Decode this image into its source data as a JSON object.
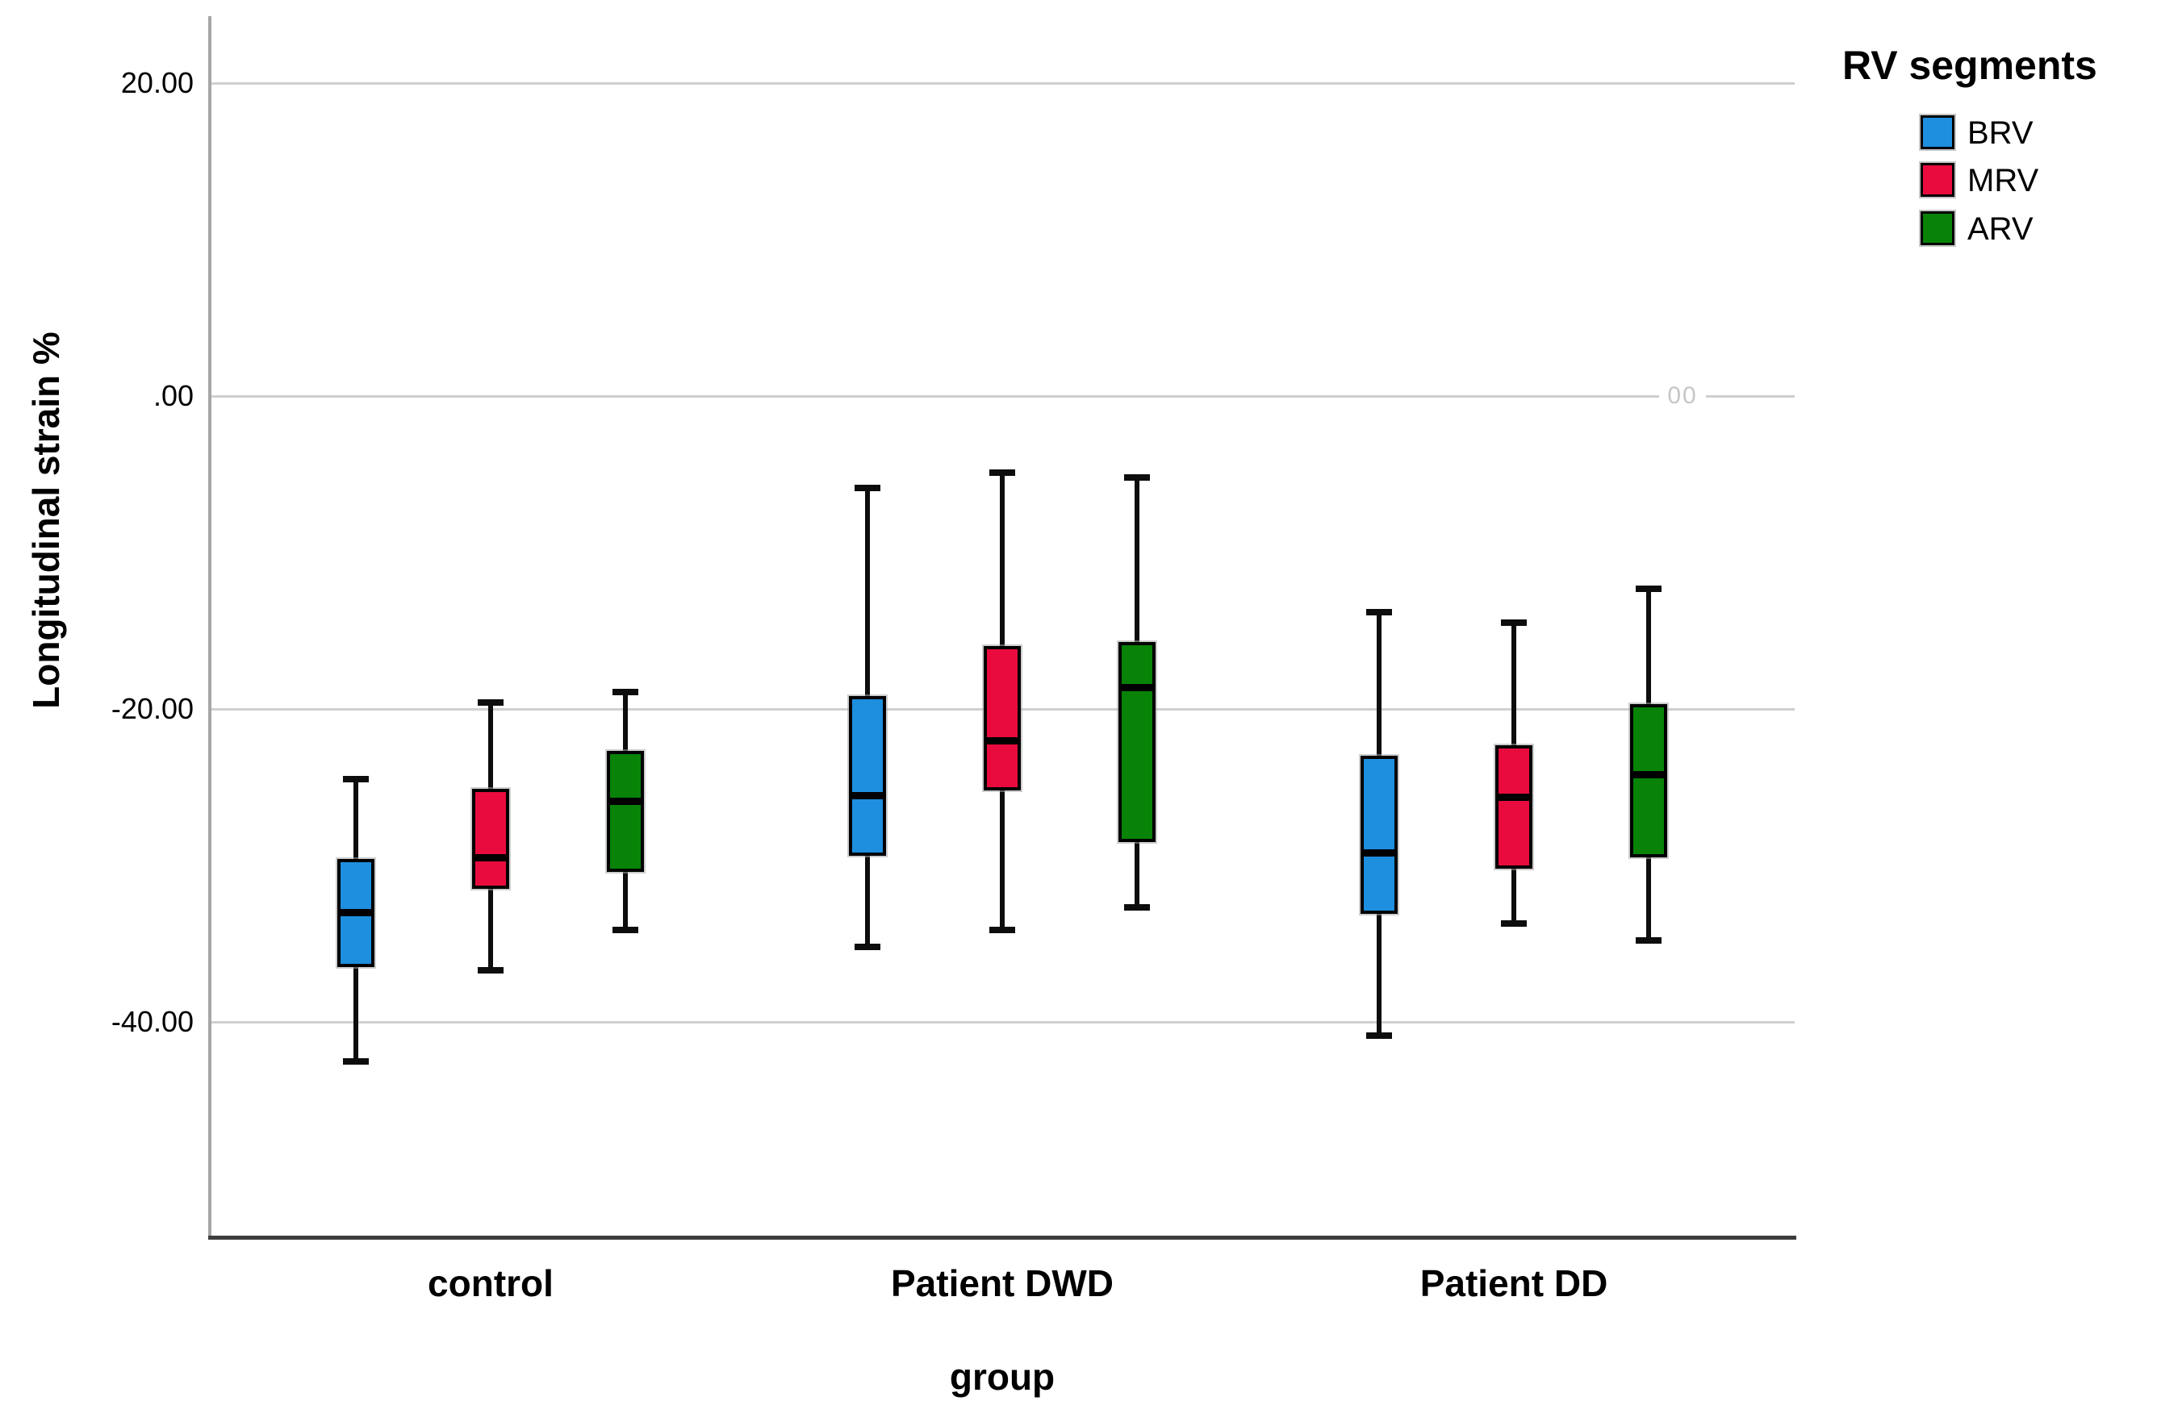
{
  "figure": {
    "background": "#ffffff",
    "artifact_text": "00"
  },
  "y_axis": {
    "title": "Longitudinal strain %",
    "ticks": [
      {
        "label": "20.00",
        "value": 20
      },
      {
        "label": ".00",
        "value": 0
      },
      {
        "label": "-20.00",
        "value": -20
      },
      {
        "label": "-40.00",
        "value": -40
      }
    ]
  },
  "x_axis": {
    "title": "group",
    "categories": [
      "control",
      "Patient DWD",
      "Patient DD"
    ]
  },
  "legend": {
    "title": "RV segments",
    "items": [
      {
        "label": "BRV",
        "color": "#1E8EDE"
      },
      {
        "label": "MRV",
        "color": "#E90B3E"
      },
      {
        "label": "ARV",
        "color": "#088308"
      }
    ]
  },
  "chart_data": {
    "type": "boxplot",
    "title": "",
    "xlabel": "group",
    "ylabel": "Longitudinal strain %",
    "ylim": [
      -55,
      25
    ],
    "grid": "horizontal",
    "legend_position": "top-right",
    "categories": [
      "control",
      "Patient DWD",
      "Patient DD"
    ],
    "series": [
      {
        "name": "BRV",
        "color": "#1E8EDE",
        "boxes": [
          {
            "category": "control",
            "whisker_low": -42.5,
            "q1": -36.5,
            "median": -33.0,
            "q3": -29.6,
            "whisker_high": -24.5
          },
          {
            "category": "Patient DWD",
            "whisker_low": -35.2,
            "q1": -29.4,
            "median": -25.5,
            "q3": -19.2,
            "whisker_high": -5.9
          },
          {
            "category": "Patient DD",
            "whisker_low": -40.9,
            "q1": -33.1,
            "median": -29.2,
            "q3": -23.0,
            "whisker_high": -13.8
          }
        ]
      },
      {
        "name": "MRV",
        "color": "#E90B3E",
        "boxes": [
          {
            "category": "control",
            "whisker_low": -36.7,
            "q1": -31.5,
            "median": -29.5,
            "q3": -25.1,
            "whisker_high": -19.6
          },
          {
            "category": "Patient DWD",
            "whisker_low": -34.1,
            "q1": -25.2,
            "median": -22.0,
            "q3": -16.0,
            "whisker_high": -4.9
          },
          {
            "category": "Patient DD",
            "whisker_low": -33.7,
            "q1": -30.2,
            "median": -25.6,
            "q3": -22.3,
            "whisker_high": -14.5
          }
        ]
      },
      {
        "name": "ARV",
        "color": "#088308",
        "boxes": [
          {
            "category": "control",
            "whisker_low": -34.1,
            "q1": -30.4,
            "median": -25.9,
            "q3": -22.7,
            "whisker_high": -18.9
          },
          {
            "category": "Patient DWD",
            "whisker_low": -32.7,
            "q1": -28.5,
            "median": -18.6,
            "q3": -15.7,
            "whisker_high": -5.2
          },
          {
            "category": "Patient DD",
            "whisker_low": -34.8,
            "q1": -29.5,
            "median": -24.2,
            "q3": -19.7,
            "whisker_high": -12.3
          }
        ]
      }
    ]
  }
}
